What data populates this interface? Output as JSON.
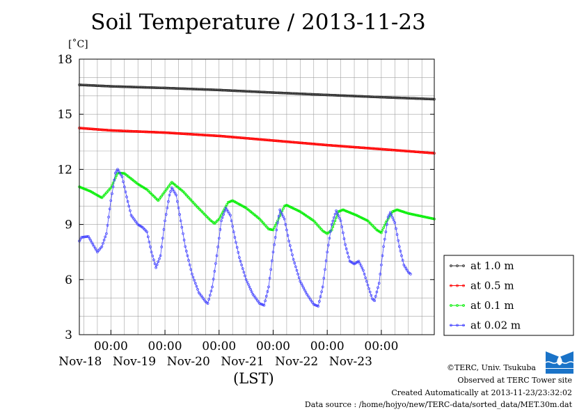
{
  "title": "Soil Temperature / 2013-11-23",
  "unit_label": "[˚C]",
  "xaxis_label": "(LST)",
  "footer": {
    "credit": "©TERC, Univ. Tsukuba",
    "observed": "Observed at TERC Tower site",
    "created": "Created Automatically at 2013-11-23/23:32:02",
    "source": "Data source : /home/hojyo/new/TERC-data/sorted_data/MET.30m.dat"
  },
  "logo_text": "TERC",
  "chart_data": {
    "type": "line",
    "title": "Soil Temperature / 2013-11-23",
    "xlabel": "(LST)",
    "ylabel": "[˚C]",
    "ylim": [
      3,
      18
    ],
    "xlim": [
      "2013-11-17 10:00",
      "2013-11-23 23:30"
    ],
    "y_ticks": [
      3,
      6,
      9,
      12,
      15,
      18
    ],
    "x_ticks": [
      {
        "time": "2013-11-18 00:00",
        "label": "00:00",
        "date_label": "Nov-18"
      },
      {
        "time": "2013-11-19 00:00",
        "label": "00:00",
        "date_label": "Nov-19"
      },
      {
        "time": "2013-11-20 00:00",
        "label": "00:00",
        "date_label": "Nov-20"
      },
      {
        "time": "2013-11-21 00:00",
        "label": "00:00",
        "date_label": "Nov-21"
      },
      {
        "time": "2013-11-22 00:00",
        "label": "00:00",
        "date_label": "Nov-22"
      },
      {
        "time": "2013-11-23 00:00",
        "label": "00:00",
        "date_label": "Nov-23"
      }
    ],
    "grid": true,
    "legend_position": "right",
    "series": [
      {
        "name": "at 1.0 m",
        "color": "#303030",
        "points": [
          [
            "2013-11-17 10:00",
            16.6
          ],
          [
            "2013-11-18 00:00",
            16.52
          ],
          [
            "2013-11-19 00:00",
            16.43
          ],
          [
            "2013-11-20 00:00",
            16.32
          ],
          [
            "2013-11-21 00:00",
            16.18
          ],
          [
            "2013-11-22 00:00",
            16.05
          ],
          [
            "2013-11-23 00:00",
            15.93
          ],
          [
            "2013-11-23 23:30",
            15.82
          ]
        ]
      },
      {
        "name": "at 0.5 m",
        "color": "#ff0000",
        "points": [
          [
            "2013-11-17 10:00",
            14.25
          ],
          [
            "2013-11-18 00:00",
            14.12
          ],
          [
            "2013-11-19 00:00",
            14.0
          ],
          [
            "2013-11-20 00:00",
            13.82
          ],
          [
            "2013-11-21 00:00",
            13.57
          ],
          [
            "2013-11-22 00:00",
            13.32
          ],
          [
            "2013-11-23 00:00",
            13.1
          ],
          [
            "2013-11-23 23:30",
            12.88
          ]
        ]
      },
      {
        "name": "at 0.1 m",
        "color": "#00ee00",
        "points": [
          [
            "2013-11-17 10:00",
            11.05
          ],
          [
            "2013-11-17 15:00",
            10.8
          ],
          [
            "2013-11-17 20:00",
            10.45
          ],
          [
            "2013-11-18 00:00",
            11.0
          ],
          [
            "2013-11-18 03:00",
            11.8
          ],
          [
            "2013-11-18 06:00",
            11.78
          ],
          [
            "2013-11-18 12:00",
            11.2
          ],
          [
            "2013-11-18 16:00",
            10.9
          ],
          [
            "2013-11-18 21:00",
            10.3
          ],
          [
            "2013-11-19 03:00",
            11.3
          ],
          [
            "2013-11-19 08:00",
            10.8
          ],
          [
            "2013-11-19 14:00",
            10.0
          ],
          [
            "2013-11-19 20:00",
            9.25
          ],
          [
            "2013-11-19 22:00",
            9.05
          ],
          [
            "2013-11-20 00:00",
            9.3
          ],
          [
            "2013-11-20 04:00",
            10.2
          ],
          [
            "2013-11-20 06:00",
            10.3
          ],
          [
            "2013-11-20 12:00",
            9.9
          ],
          [
            "2013-11-20 18:00",
            9.3
          ],
          [
            "2013-11-20 22:00",
            8.75
          ],
          [
            "2013-11-21 00:00",
            8.7
          ],
          [
            "2013-11-21 02:00",
            9.2
          ],
          [
            "2013-11-21 05:00",
            10.0
          ],
          [
            "2013-11-21 06:00",
            10.05
          ],
          [
            "2013-11-21 12:00",
            9.7
          ],
          [
            "2013-11-21 18:00",
            9.2
          ],
          [
            "2013-11-21 22:00",
            8.65
          ],
          [
            "2013-11-22 00:00",
            8.5
          ],
          [
            "2013-11-22 02:00",
            8.7
          ],
          [
            "2013-11-22 05:00",
            9.7
          ],
          [
            "2013-11-22 07:00",
            9.8
          ],
          [
            "2013-11-22 13:00",
            9.5
          ],
          [
            "2013-11-22 18:00",
            9.2
          ],
          [
            "2013-11-22 22:00",
            8.7
          ],
          [
            "2013-11-23 00:00",
            8.55
          ],
          [
            "2013-11-23 02:00",
            9.1
          ],
          [
            "2013-11-23 05:00",
            9.7
          ],
          [
            "2013-11-23 07:00",
            9.8
          ],
          [
            "2013-11-23 12:00",
            9.6
          ],
          [
            "2013-11-23 23:30",
            9.3
          ]
        ]
      },
      {
        "name": "at 0.02 m",
        "color": "#4444ff",
        "points": [
          [
            "2013-11-17 10:00",
            8.1
          ],
          [
            "2013-11-17 11:00",
            8.3
          ],
          [
            "2013-11-17 14:00",
            8.35
          ],
          [
            "2013-11-17 18:00",
            7.5
          ],
          [
            "2013-11-17 20:00",
            7.8
          ],
          [
            "2013-11-17 22:00",
            8.5
          ],
          [
            "2013-11-18 00:00",
            10.3
          ],
          [
            "2013-11-18 02:00",
            11.8
          ],
          [
            "2013-11-18 03:00",
            12.0
          ],
          [
            "2013-11-18 05:00",
            11.6
          ],
          [
            "2013-11-18 07:00",
            10.5
          ],
          [
            "2013-11-18 09:00",
            9.5
          ],
          [
            "2013-11-18 12:00",
            9.0
          ],
          [
            "2013-11-18 14:00",
            8.85
          ],
          [
            "2013-11-18 16:00",
            8.6
          ],
          [
            "2013-11-18 18:00",
            7.5
          ],
          [
            "2013-11-18 20:00",
            6.65
          ],
          [
            "2013-11-18 22:00",
            7.3
          ],
          [
            "2013-11-19 00:00",
            9.2
          ],
          [
            "2013-11-19 02:00",
            10.6
          ],
          [
            "2013-11-19 03:00",
            11.0
          ],
          [
            "2013-11-19 05:00",
            10.6
          ],
          [
            "2013-11-19 07:00",
            9.2
          ],
          [
            "2013-11-19 09:00",
            7.8
          ],
          [
            "2013-11-19 12:00",
            6.3
          ],
          [
            "2013-11-19 15:00",
            5.3
          ],
          [
            "2013-11-19 18:00",
            4.8
          ],
          [
            "2013-11-19 19:00",
            4.7
          ],
          [
            "2013-11-19 21:00",
            5.6
          ],
          [
            "2013-11-19 23:00",
            7.3
          ],
          [
            "2013-11-20 01:00",
            9.2
          ],
          [
            "2013-11-20 03:00",
            9.9
          ],
          [
            "2013-11-20 05:00",
            9.5
          ],
          [
            "2013-11-20 07:00",
            8.3
          ],
          [
            "2013-11-20 09:00",
            7.2
          ],
          [
            "2013-11-20 12:00",
            6.0
          ],
          [
            "2013-11-20 15:00",
            5.2
          ],
          [
            "2013-11-20 18:00",
            4.7
          ],
          [
            "2013-11-20 20:00",
            4.6
          ],
          [
            "2013-11-20 22:00",
            5.6
          ],
          [
            "2013-11-21 00:00",
            7.5
          ],
          [
            "2013-11-21 02:00",
            9.1
          ],
          [
            "2013-11-21 03:00",
            9.8
          ],
          [
            "2013-11-21 05:00",
            9.3
          ],
          [
            "2013-11-21 07:00",
            8.1
          ],
          [
            "2013-11-21 09:00",
            7.1
          ],
          [
            "2013-11-21 12:00",
            5.9
          ],
          [
            "2013-11-21 15:00",
            5.2
          ],
          [
            "2013-11-21 18:00",
            4.65
          ],
          [
            "2013-11-21 20:00",
            4.55
          ],
          [
            "2013-11-21 22:00",
            5.6
          ],
          [
            "2013-11-22 00:00",
            7.5
          ],
          [
            "2013-11-22 02:00",
            9.0
          ],
          [
            "2013-11-22 04:00",
            9.75
          ],
          [
            "2013-11-22 06:00",
            9.2
          ],
          [
            "2013-11-22 08:00",
            7.9
          ],
          [
            "2013-11-22 10:00",
            7.0
          ],
          [
            "2013-11-22 12:00",
            6.85
          ],
          [
            "2013-11-22 14:00",
            7.0
          ],
          [
            "2013-11-22 16:00",
            6.5
          ],
          [
            "2013-11-22 18:00",
            5.7
          ],
          [
            "2013-11-22 20:00",
            4.95
          ],
          [
            "2013-11-22 21:00",
            4.85
          ],
          [
            "2013-11-22 23:00",
            5.8
          ],
          [
            "2013-11-23 01:00",
            7.8
          ],
          [
            "2013-11-23 03:00",
            9.4
          ],
          [
            "2013-11-23 04:00",
            9.65
          ],
          [
            "2013-11-23 06:00",
            9.1
          ],
          [
            "2013-11-23 08:00",
            7.8
          ],
          [
            "2013-11-23 10:00",
            6.8
          ],
          [
            "2013-11-23 12:00",
            6.4
          ],
          [
            "2013-11-23 13:00",
            6.3
          ]
        ]
      }
    ]
  }
}
